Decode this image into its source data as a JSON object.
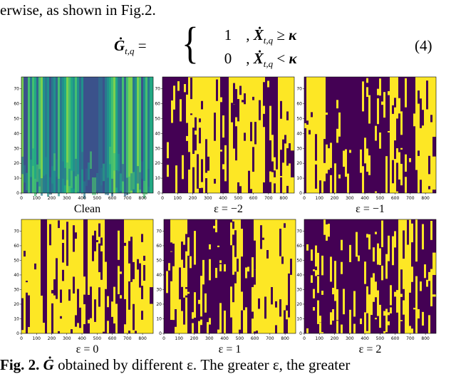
{
  "intro_text": "erwise, as shown in Fig.2.",
  "equation": {
    "lhs_symbol": "Ġ",
    "lhs_subscript": "t,q",
    "equals": "=",
    "cases": [
      {
        "value": "1",
        "comma": ",",
        "symbol": "Ẋ",
        "subscript": "t,q",
        "relation": "≥",
        "threshold": "κ"
      },
      {
        "value": "0",
        "comma": ",",
        "symbol": "Ẋ",
        "subscript": "t,q",
        "relation": "<",
        "threshold": "κ"
      }
    ],
    "number": "(4)"
  },
  "figure": {
    "xlim": [
      0,
      870
    ],
    "ylim": [
      0,
      78
    ],
    "xticks": [
      0,
      100,
      200,
      300,
      400,
      500,
      600,
      700,
      800
    ],
    "yticks": [
      0,
      10,
      20,
      30,
      40,
      50,
      60,
      70
    ],
    "panels": [
      {
        "label": "Clean"
      },
      {
        "label": "ε = −2"
      },
      {
        "label": "ε = −1"
      },
      {
        "label": "ε = 0"
      },
      {
        "label": "ε = 1"
      },
      {
        "label": "ε = 2"
      }
    ]
  },
  "caption": {
    "label": "Fig. 2.",
    "symbol": "Ġ",
    "text": "obtained by different ε. The greater ε, the greater"
  }
}
